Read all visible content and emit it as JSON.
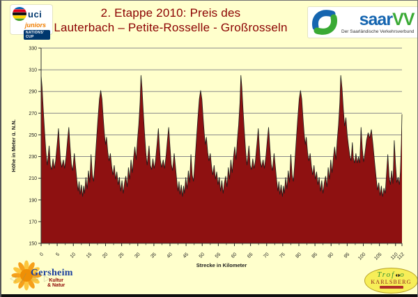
{
  "slide": {
    "title_line1": "2. Etappe 2010: Preis des",
    "title_line2": "Lauterbach – Petite-Rosselle - Großrosseln",
    "title_color": "#8B0000",
    "background": "#FFFFCC"
  },
  "logos": {
    "uci": {
      "word": "uci",
      "sub": "juniors",
      "cup": "NATIONS' CUP",
      "stripe_colors": [
        "#0066b3",
        "#e2001a",
        "#101010",
        "#ffd500",
        "#43a02c"
      ]
    },
    "saarvv": {
      "saar": "saar",
      "vv": "VV",
      "tagline": "Der Saarländische Verkehrsverbund",
      "saar_color": "#1565b0",
      "vv_color": "#3aaa35"
    },
    "gersheim": {
      "name": "Gersheim",
      "sub1": "Kultur",
      "sub2": "& Natur"
    },
    "trofeo": {
      "line1": "Trof",
      "line1b": "o",
      "line2": "KARLSBERG"
    }
  },
  "nav": {
    "prev_icon": "◁",
    "pen_icon": "╱",
    "menu_icon": "▭",
    "next_icon": "▷"
  },
  "chart_data": {
    "type": "area",
    "title": "",
    "xlabel": "Strecke in Kilometer",
    "ylabel": "Höhe in Meter ü. N.N.",
    "xlim": [
      0,
      112
    ],
    "ylim": [
      150,
      330
    ],
    "grid": true,
    "legend": "none",
    "y_ticks": [
      150,
      170,
      190,
      210,
      230,
      250,
      270,
      290,
      310,
      330
    ],
    "x_ticks": [
      0,
      5,
      10,
      15,
      20,
      25,
      30,
      35,
      40,
      45,
      50,
      55,
      60,
      65,
      70,
      75,
      80,
      85,
      90,
      95,
      100,
      105,
      110,
      112
    ],
    "minor_tick_step_km": 2.5,
    "fill_color": "#8E1111",
    "line_color": "#1c1c1c",
    "grid_color": "#8a8a8a",
    "axis_color": "#303030",
    "text_color": "#1a1a1a",
    "points": [
      [
        0.0,
        305
      ],
      [
        0.3,
        294
      ],
      [
        0.7,
        272
      ],
      [
        1.1,
        252
      ],
      [
        1.5,
        234
      ],
      [
        1.9,
        222
      ],
      [
        2.2,
        231
      ],
      [
        2.5,
        240
      ],
      [
        2.9,
        222
      ],
      [
        3.3,
        218
      ],
      [
        3.7,
        228
      ],
      [
        4.1,
        219
      ],
      [
        4.5,
        226
      ],
      [
        5.0,
        242
      ],
      [
        5.4,
        256
      ],
      [
        5.7,
        241
      ],
      [
        6.0,
        227
      ],
      [
        6.4,
        220
      ],
      [
        6.9,
        227
      ],
      [
        7.3,
        219
      ],
      [
        7.8,
        231
      ],
      [
        8.2,
        245
      ],
      [
        8.6,
        257
      ],
      [
        9.0,
        239
      ],
      [
        9.4,
        223
      ],
      [
        9.8,
        217
      ],
      [
        10.3,
        233
      ],
      [
        10.7,
        221
      ],
      [
        11.1,
        208
      ],
      [
        11.5,
        198
      ],
      [
        11.8,
        207
      ],
      [
        12.1,
        195
      ],
      [
        12.5,
        204
      ],
      [
        12.9,
        193
      ],
      [
        13.2,
        203
      ],
      [
        13.5,
        196
      ],
      [
        13.9,
        211
      ],
      [
        14.3,
        200
      ],
      [
        14.7,
        217
      ],
      [
        15.1,
        206
      ],
      [
        15.5,
        232
      ],
      [
        15.9,
        213
      ],
      [
        16.3,
        207
      ],
      [
        16.7,
        223
      ],
      [
        17.1,
        241
      ],
      [
        17.6,
        263
      ],
      [
        18.1,
        283
      ],
      [
        18.5,
        291
      ],
      [
        18.9,
        283
      ],
      [
        19.3,
        265
      ],
      [
        19.7,
        249
      ],
      [
        20.0,
        241
      ],
      [
        20.3,
        248
      ],
      [
        20.7,
        234
      ],
      [
        21.1,
        226
      ],
      [
        21.5,
        233
      ],
      [
        21.9,
        221
      ],
      [
        22.3,
        213
      ],
      [
        22.7,
        222
      ],
      [
        23.1,
        209
      ],
      [
        23.5,
        216
      ],
      [
        23.9,
        204
      ],
      [
        24.3,
        211
      ],
      [
        24.7,
        198
      ],
      [
        25.1,
        208
      ],
      [
        25.5,
        196
      ],
      [
        25.9,
        206
      ],
      [
        26.3,
        212
      ],
      [
        26.7,
        202
      ],
      [
        27.1,
        220
      ],
      [
        27.5,
        209
      ],
      [
        27.9,
        227
      ],
      [
        28.3,
        215
      ],
      [
        28.7,
        229
      ],
      [
        29.1,
        239
      ],
      [
        29.5,
        227
      ],
      [
        29.9,
        245
      ],
      [
        30.3,
        259
      ],
      [
        30.7,
        279
      ],
      [
        31.0,
        305
      ],
      [
        31.3,
        294
      ],
      [
        31.7,
        272
      ],
      [
        32.1,
        252
      ],
      [
        32.5,
        234
      ],
      [
        32.9,
        222
      ],
      [
        33.2,
        231
      ],
      [
        33.5,
        240
      ],
      [
        33.9,
        222
      ],
      [
        34.3,
        218
      ],
      [
        34.7,
        228
      ],
      [
        35.1,
        219
      ],
      [
        35.5,
        226
      ],
      [
        36.0,
        242
      ],
      [
        36.4,
        256
      ],
      [
        36.7,
        241
      ],
      [
        37.0,
        227
      ],
      [
        37.4,
        220
      ],
      [
        37.9,
        227
      ],
      [
        38.3,
        219
      ],
      [
        38.8,
        231
      ],
      [
        39.2,
        245
      ],
      [
        39.6,
        257
      ],
      [
        40.0,
        239
      ],
      [
        40.4,
        223
      ],
      [
        40.8,
        217
      ],
      [
        41.3,
        233
      ],
      [
        41.7,
        221
      ],
      [
        42.1,
        208
      ],
      [
        42.5,
        198
      ],
      [
        42.8,
        207
      ],
      [
        43.1,
        195
      ],
      [
        43.5,
        204
      ],
      [
        43.9,
        193
      ],
      [
        44.2,
        203
      ],
      [
        44.5,
        196
      ],
      [
        44.9,
        211
      ],
      [
        45.3,
        200
      ],
      [
        45.7,
        217
      ],
      [
        46.1,
        206
      ],
      [
        46.5,
        232
      ],
      [
        46.9,
        213
      ],
      [
        47.3,
        207
      ],
      [
        47.7,
        223
      ],
      [
        48.1,
        241
      ],
      [
        48.6,
        263
      ],
      [
        49.1,
        283
      ],
      [
        49.5,
        291
      ],
      [
        49.9,
        283
      ],
      [
        50.3,
        265
      ],
      [
        50.7,
        249
      ],
      [
        51.0,
        241
      ],
      [
        51.3,
        248
      ],
      [
        51.7,
        234
      ],
      [
        52.1,
        226
      ],
      [
        52.5,
        233
      ],
      [
        52.9,
        221
      ],
      [
        53.3,
        213
      ],
      [
        53.7,
        222
      ],
      [
        54.1,
        209
      ],
      [
        54.5,
        216
      ],
      [
        54.9,
        204
      ],
      [
        55.3,
        211
      ],
      [
        55.7,
        198
      ],
      [
        56.1,
        208
      ],
      [
        56.5,
        196
      ],
      [
        56.9,
        206
      ],
      [
        57.3,
        212
      ],
      [
        57.7,
        202
      ],
      [
        58.1,
        220
      ],
      [
        58.5,
        209
      ],
      [
        58.9,
        227
      ],
      [
        59.3,
        215
      ],
      [
        59.7,
        229
      ],
      [
        60.1,
        239
      ],
      [
        60.5,
        227
      ],
      [
        60.9,
        245
      ],
      [
        61.3,
        259
      ],
      [
        61.7,
        279
      ],
      [
        62.0,
        305
      ],
      [
        62.3,
        294
      ],
      [
        62.7,
        272
      ],
      [
        63.1,
        252
      ],
      [
        63.5,
        234
      ],
      [
        63.9,
        222
      ],
      [
        64.2,
        231
      ],
      [
        64.5,
        240
      ],
      [
        64.9,
        222
      ],
      [
        65.3,
        218
      ],
      [
        65.7,
        228
      ],
      [
        66.1,
        219
      ],
      [
        66.5,
        226
      ],
      [
        67.0,
        242
      ],
      [
        67.4,
        256
      ],
      [
        67.7,
        241
      ],
      [
        68.0,
        227
      ],
      [
        68.4,
        220
      ],
      [
        68.9,
        227
      ],
      [
        69.3,
        219
      ],
      [
        69.8,
        231
      ],
      [
        70.2,
        245
      ],
      [
        70.6,
        257
      ],
      [
        71.0,
        239
      ],
      [
        71.4,
        223
      ],
      [
        71.8,
        217
      ],
      [
        72.3,
        233
      ],
      [
        72.7,
        221
      ],
      [
        73.1,
        208
      ],
      [
        73.5,
        198
      ],
      [
        73.8,
        207
      ],
      [
        74.1,
        195
      ],
      [
        74.5,
        204
      ],
      [
        74.9,
        193
      ],
      [
        75.2,
        203
      ],
      [
        75.5,
        196
      ],
      [
        75.9,
        211
      ],
      [
        76.3,
        200
      ],
      [
        76.7,
        217
      ],
      [
        77.1,
        206
      ],
      [
        77.5,
        232
      ],
      [
        77.9,
        213
      ],
      [
        78.3,
        207
      ],
      [
        78.7,
        223
      ],
      [
        79.1,
        241
      ],
      [
        79.6,
        263
      ],
      [
        80.1,
        283
      ],
      [
        80.5,
        291
      ],
      [
        80.9,
        283
      ],
      [
        81.3,
        265
      ],
      [
        81.7,
        249
      ],
      [
        82.0,
        241
      ],
      [
        82.3,
        248
      ],
      [
        82.7,
        234
      ],
      [
        83.1,
        226
      ],
      [
        83.5,
        233
      ],
      [
        83.9,
        221
      ],
      [
        84.3,
        213
      ],
      [
        84.7,
        222
      ],
      [
        85.1,
        209
      ],
      [
        85.5,
        216
      ],
      [
        85.9,
        204
      ],
      [
        86.3,
        211
      ],
      [
        86.7,
        198
      ],
      [
        87.1,
        208
      ],
      [
        87.5,
        196
      ],
      [
        87.9,
        206
      ],
      [
        88.3,
        212
      ],
      [
        88.7,
        202
      ],
      [
        89.1,
        220
      ],
      [
        89.5,
        209
      ],
      [
        89.9,
        227
      ],
      [
        90.3,
        215
      ],
      [
        90.7,
        229
      ],
      [
        91.1,
        239
      ],
      [
        91.5,
        227
      ],
      [
        91.9,
        245
      ],
      [
        92.3,
        259
      ],
      [
        92.7,
        279
      ],
      [
        93.0,
        305
      ],
      [
        93.4,
        293
      ],
      [
        93.8,
        274
      ],
      [
        94.2,
        258
      ],
      [
        94.6,
        266
      ],
      [
        95.0,
        250
      ],
      [
        95.4,
        240
      ],
      [
        95.8,
        231
      ],
      [
        96.2,
        226
      ],
      [
        96.6,
        243
      ],
      [
        96.9,
        229
      ],
      [
        97.3,
        224
      ],
      [
        97.7,
        233
      ],
      [
        98.1,
        224
      ],
      [
        98.5,
        230
      ],
      [
        98.9,
        224
      ],
      [
        99.3,
        257
      ],
      [
        99.7,
        237
      ],
      [
        100.1,
        225
      ],
      [
        100.5,
        233
      ],
      [
        101.0,
        245
      ],
      [
        101.5,
        252
      ],
      [
        102.0,
        247
      ],
      [
        102.5,
        255
      ],
      [
        103.0,
        241
      ],
      [
        103.5,
        225
      ],
      [
        104.0,
        210
      ],
      [
        104.4,
        199
      ],
      [
        104.8,
        206
      ],
      [
        105.2,
        194
      ],
      [
        105.6,
        203
      ],
      [
        106.0,
        193
      ],
      [
        106.4,
        201
      ],
      [
        106.8,
        196
      ],
      [
        107.2,
        214
      ],
      [
        107.6,
        232
      ],
      [
        108.0,
        212
      ],
      [
        108.4,
        204
      ],
      [
        108.8,
        217
      ],
      [
        109.2,
        205
      ],
      [
        109.6,
        245
      ],
      [
        110.0,
        223
      ],
      [
        110.4,
        206
      ],
      [
        110.8,
        211
      ],
      [
        111.2,
        204
      ],
      [
        111.5,
        216
      ],
      [
        111.8,
        242
      ],
      [
        112.0,
        269
      ]
    ]
  }
}
